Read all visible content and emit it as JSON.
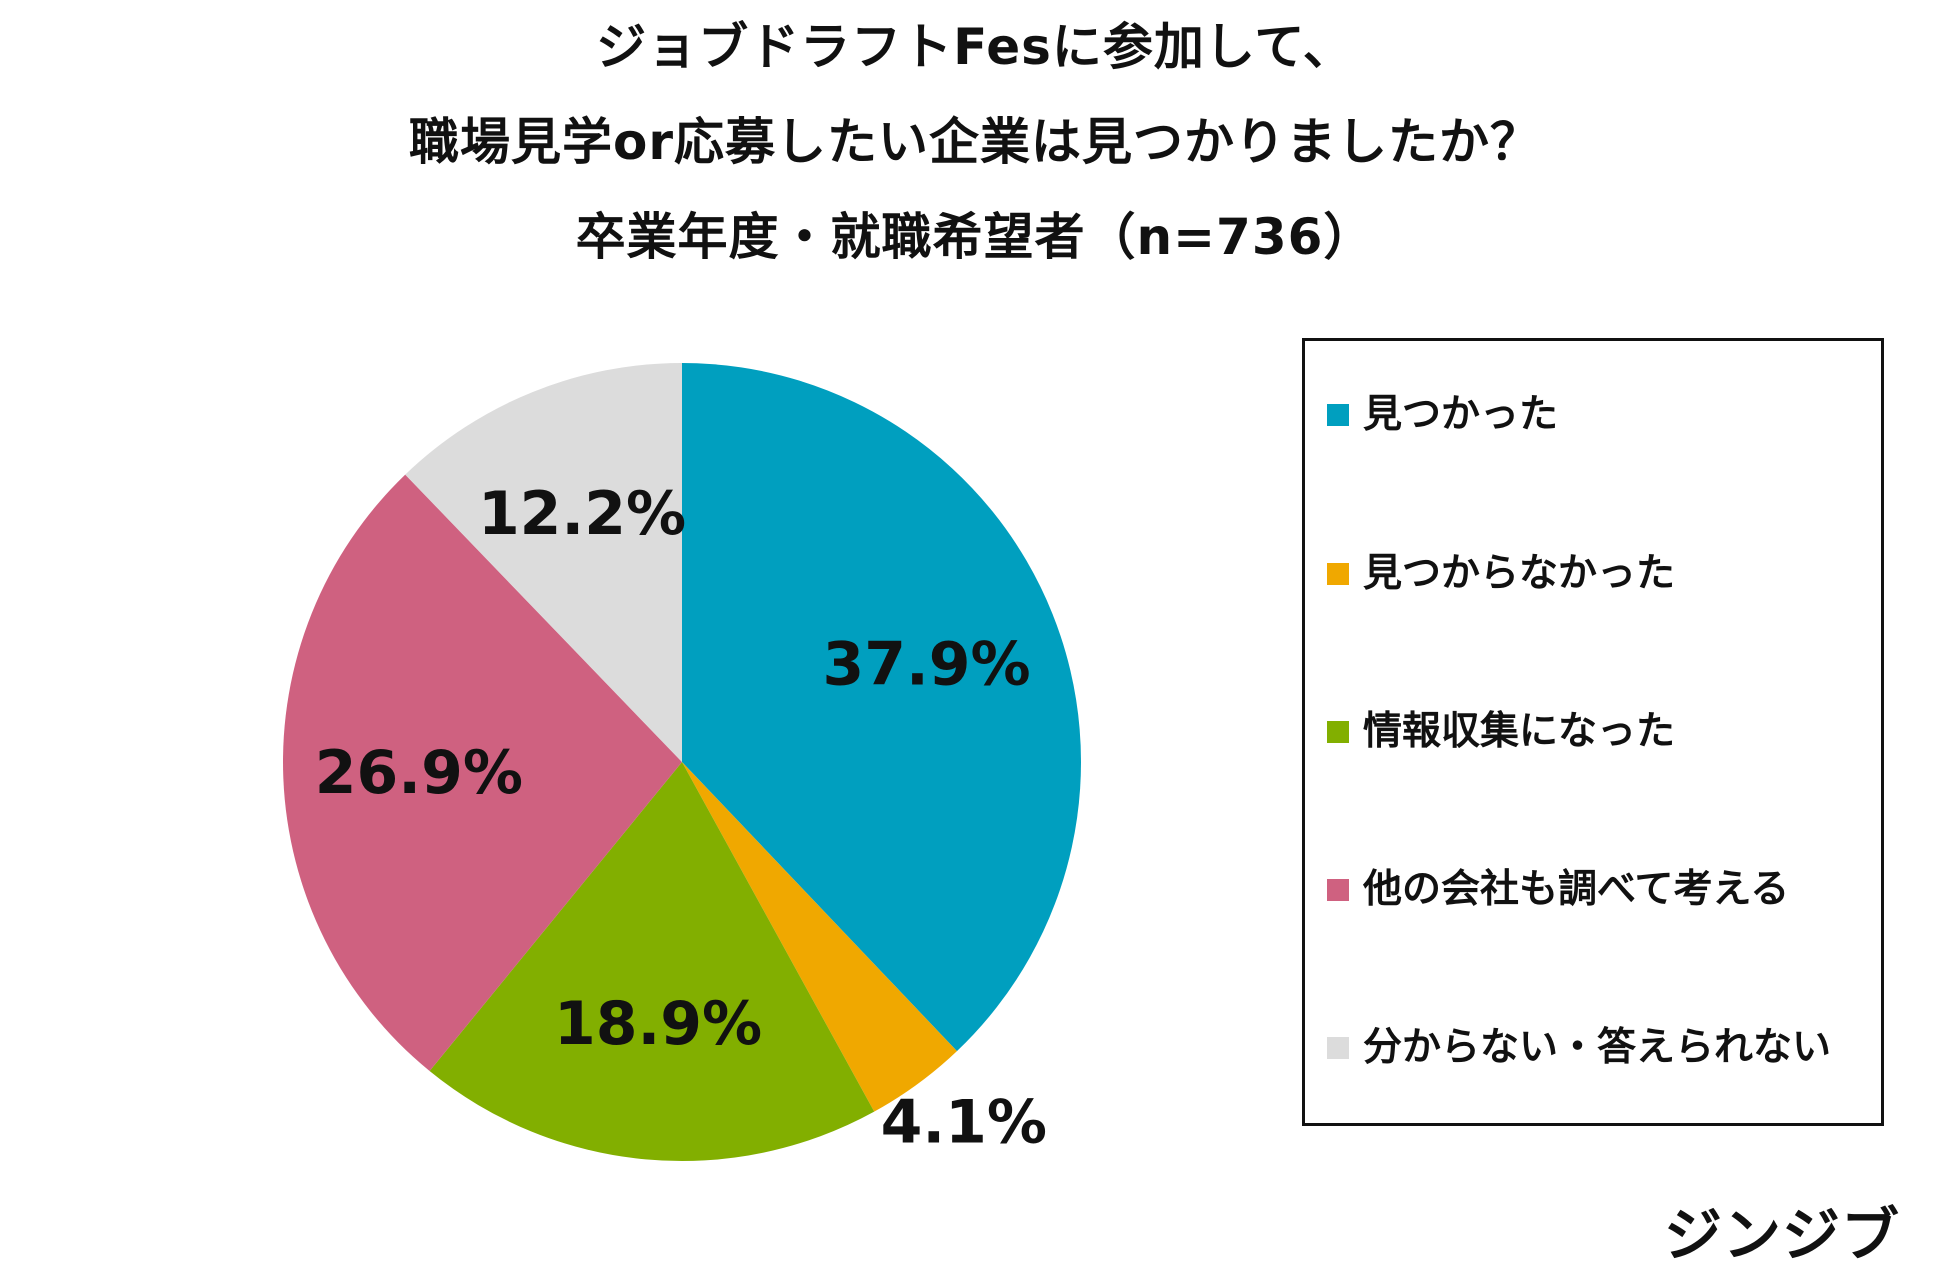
{
  "title": {
    "line1": "ジョブドラフトFesに参加して、",
    "line2": "職場見学or応募したい企業は見つかりましたか？",
    "line3": "卒業年度・就職希望者（n=736）"
  },
  "chart_data": {
    "type": "pie",
    "categories": [
      "見つかった",
      "見つからなかった",
      "情報収集になった",
      "他の会社も調べて考える",
      "分からない・答えられない"
    ],
    "values": [
      37.9,
      4.1,
      18.9,
      26.9,
      12.2
    ],
    "labels": [
      "37.9%",
      "4.1%",
      "18.9%",
      "26.9%",
      "12.2%"
    ],
    "colors": [
      "#009fbf",
      "#f0a800",
      "#82af00",
      "#cf6180",
      "#dcdcdc"
    ],
    "start": "12 o'clock, clockwise",
    "legend_position": "right",
    "n": 736
  },
  "legend": {
    "items": [
      {
        "label": "見つかった",
        "color": "#009fbf"
      },
      {
        "label": "見つからなかった",
        "color": "#f0a800"
      },
      {
        "label": "情報収集になった",
        "color": "#82af00"
      },
      {
        "label": "他の会社も調べて考える",
        "color": "#cf6180"
      },
      {
        "label": "分からない・答えられない",
        "color": "#dcdcdc"
      }
    ]
  },
  "brand": {
    "logo_text": "ジンジブ"
  }
}
